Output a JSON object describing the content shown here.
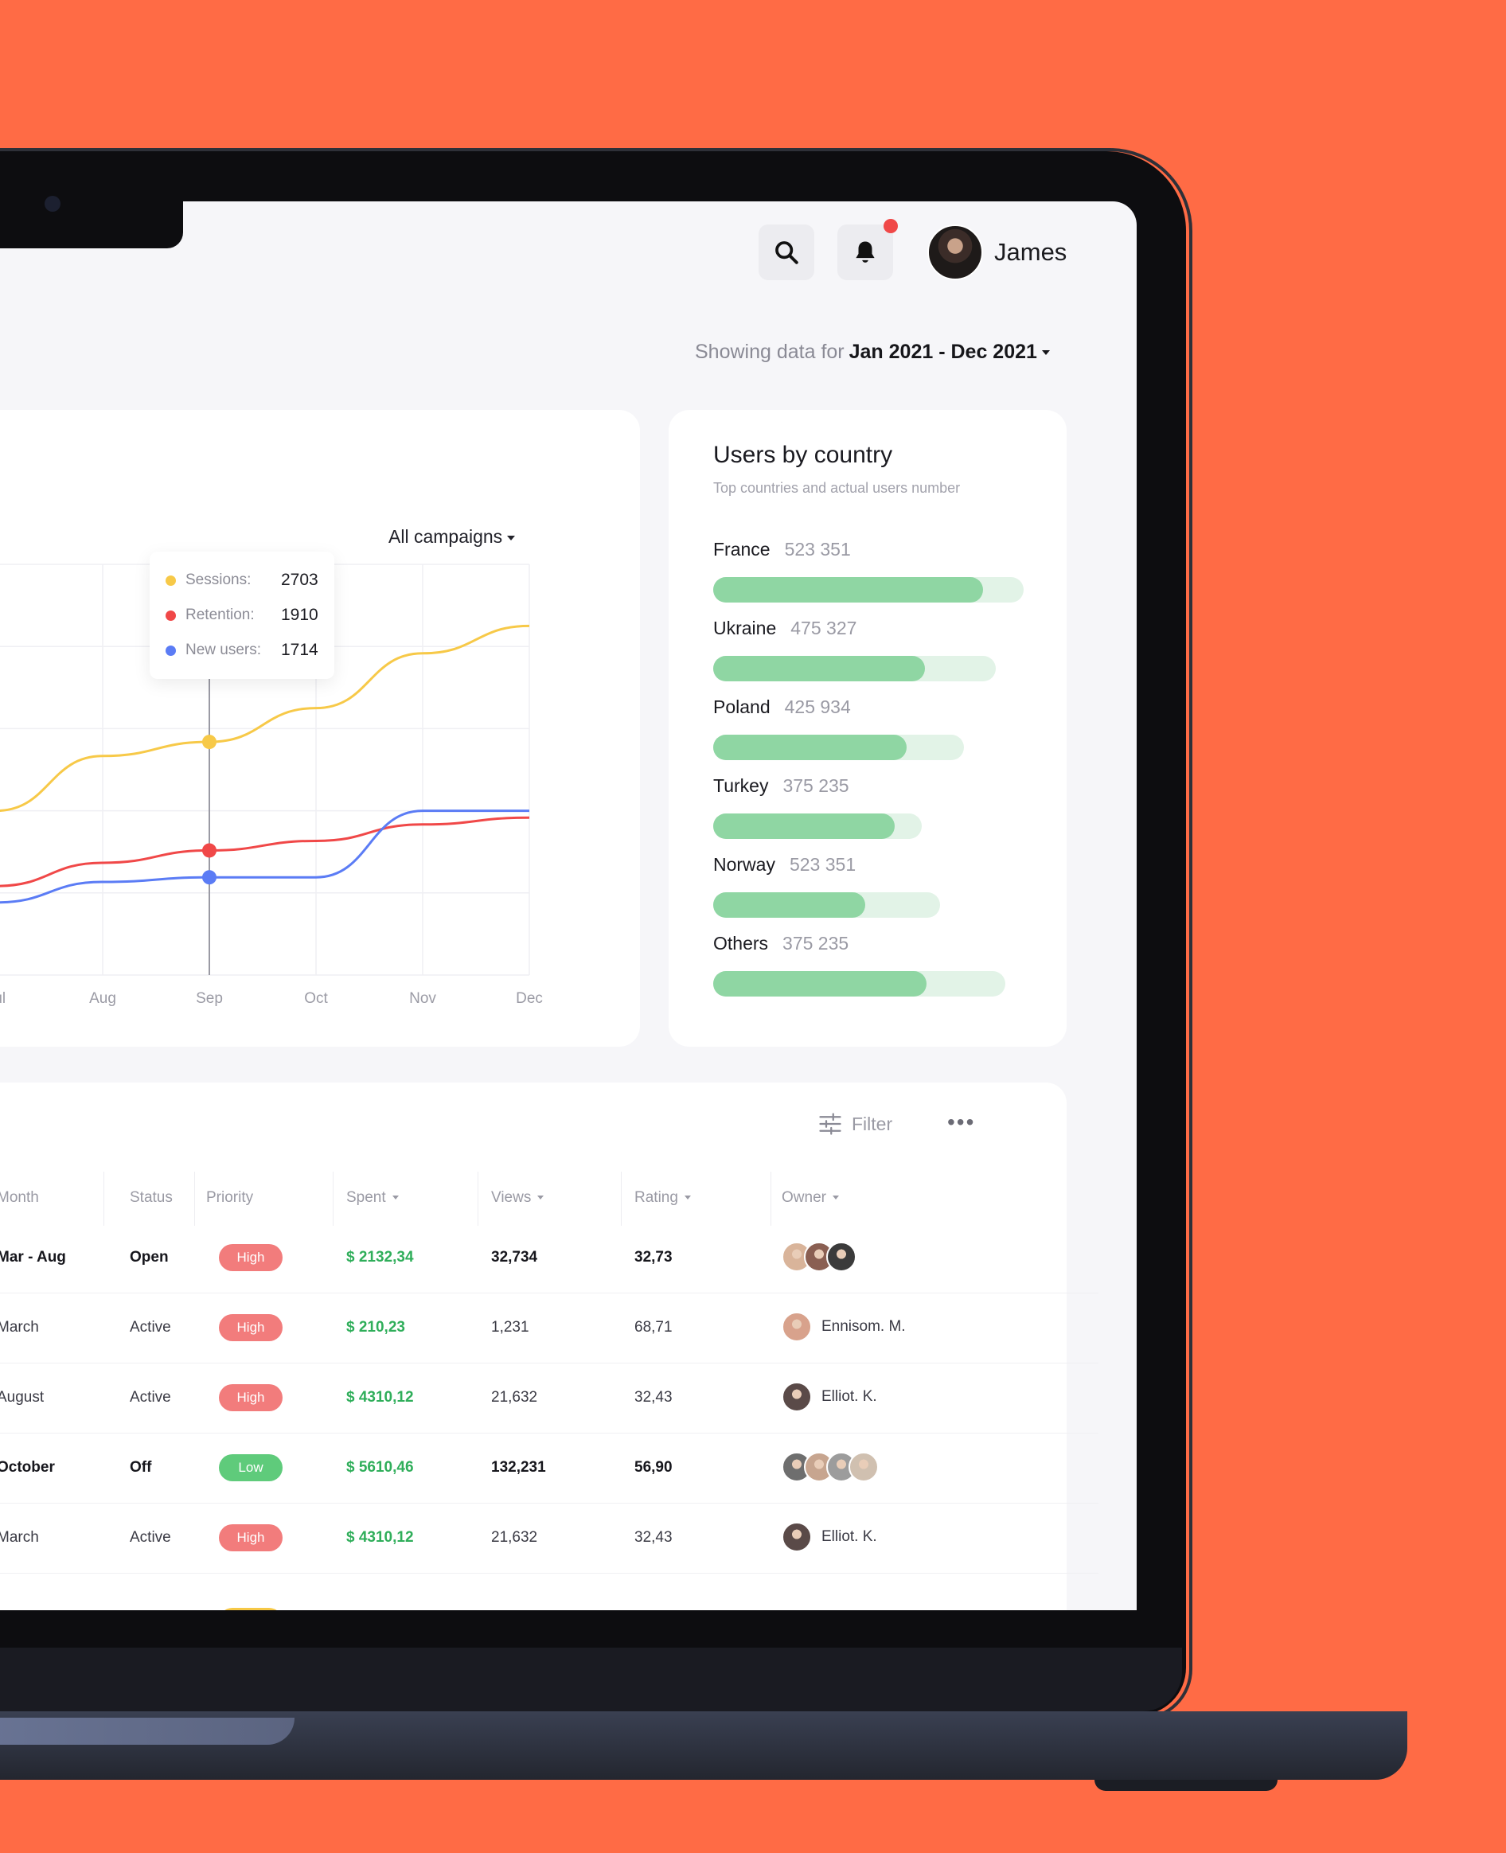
{
  "header": {
    "user_name": "James",
    "search_icon": "search-icon",
    "notification_icon": "bell-icon"
  },
  "date_range": {
    "label": "Showing data for",
    "value": "Jan 2021 - Dec 2021"
  },
  "chart_card": {
    "dropdown_label": "All campaigns",
    "tooltip": [
      {
        "label": "Sessions:",
        "value": "2703",
        "color": "#F7C948"
      },
      {
        "label": "Retention:",
        "value": "1910",
        "color": "#F04848"
      },
      {
        "label": "New users:",
        "value": "1714",
        "color": "#5B7CF5"
      }
    ]
  },
  "chart_data": {
    "type": "line",
    "x": [
      "Jul",
      "Aug",
      "Sep",
      "Oct",
      "Nov",
      "Dec"
    ],
    "series": [
      {
        "name": "Sessions",
        "color": "#F7C948",
        "values": [
          2200,
          2600,
          2703,
          2950,
          3350,
          3550
        ]
      },
      {
        "name": "Retention",
        "color": "#F04848",
        "values": [
          1650,
          1820,
          1910,
          1980,
          2100,
          2150
        ]
      },
      {
        "name": "New users",
        "color": "#5B7CF5",
        "values": [
          1530,
          1680,
          1714,
          1714,
          2200,
          2200
        ]
      }
    ],
    "ylim": [
      1000,
      4000
    ],
    "grid": true,
    "highlight_category": "Sep"
  },
  "countries_card": {
    "title": "Users by country",
    "subtitle": "Top countries and actual users number",
    "items": [
      {
        "name": "France",
        "value": "523 351",
        "ratio": 0.87
      },
      {
        "name": "Ukraine",
        "value": "475 327",
        "ratio": 0.75
      },
      {
        "name": "Poland",
        "value": "425 934",
        "ratio": 0.77
      },
      {
        "name": "Turkey",
        "value": "375 235",
        "ratio": 0.87
      },
      {
        "name": "Norway",
        "value": "523 351",
        "ratio": 0.67
      },
      {
        "name": "Others",
        "value": "375 235",
        "ratio": 0.73
      }
    ]
  },
  "table": {
    "filter_label": "Filter",
    "columns": [
      "Month",
      "Status",
      "Priority",
      "Spent",
      "Views",
      "Rating",
      "Owner"
    ],
    "rows": [
      {
        "month": "Mar - Aug",
        "status": "Open",
        "priority": "High",
        "spent": "$ 2132,34",
        "views": "32,734",
        "rating": "32,73",
        "owner": "",
        "bold": true,
        "avatars": [
          "#d9b49a",
          "#8a5f52",
          "#3b3b3b"
        ]
      },
      {
        "month": "March",
        "status": "Active",
        "priority": "High",
        "spent": "$ 210,23",
        "views": "1,231",
        "rating": "68,71",
        "owner": "Ennisom. M.",
        "bold": false,
        "avatars": [
          "#d8a28c"
        ]
      },
      {
        "month": "August",
        "status": "Active",
        "priority": "High",
        "spent": "$ 4310,12",
        "views": "21,632",
        "rating": "32,43",
        "owner": "Elliot. K.",
        "bold": false,
        "avatars": [
          "#5a4a48"
        ]
      },
      {
        "month": "October",
        "status": "Off",
        "priority": "Low",
        "spent": "$ 5610,46",
        "views": "132,231",
        "rating": "56,90",
        "owner": "",
        "bold": true,
        "avatars": [
          "#6e6e6e",
          "#c7a58f",
          "#9c9c9c",
          "#d0c0b0"
        ]
      },
      {
        "month": "March",
        "status": "Active",
        "priority": "High",
        "spent": "$ 4310,12",
        "views": "21,632",
        "rating": "32,43",
        "owner": "Elliot. K.",
        "bold": false,
        "avatars": [
          "#5a4a48"
        ]
      }
    ]
  }
}
